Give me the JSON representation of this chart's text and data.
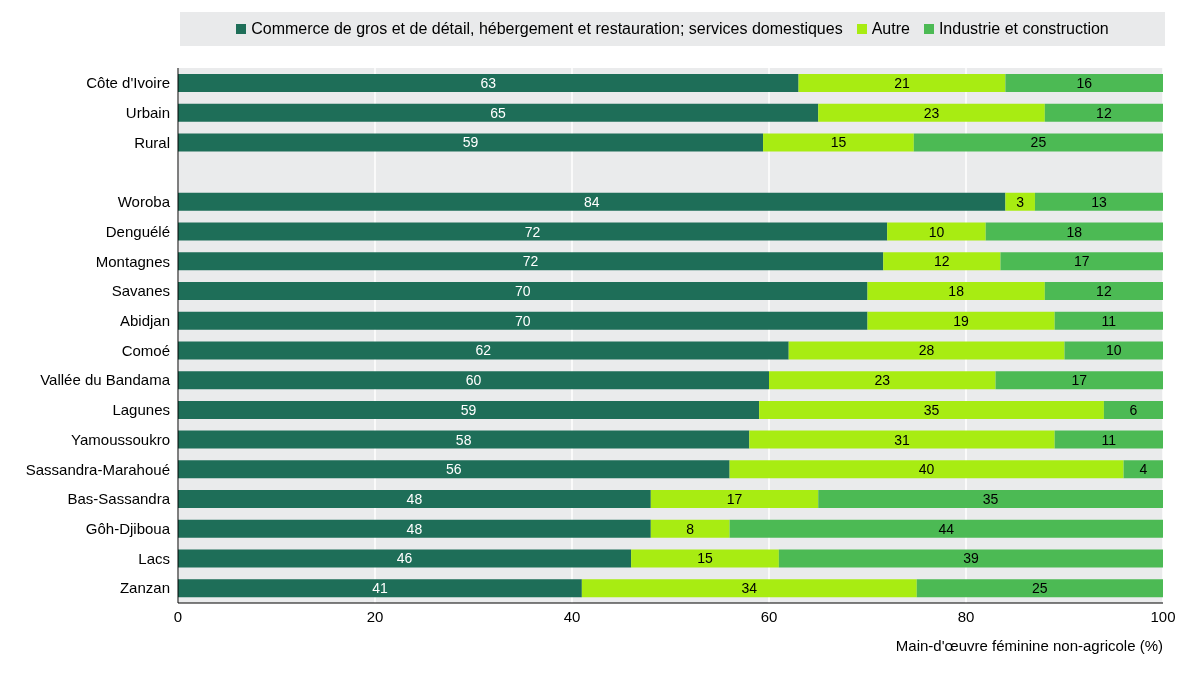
{
  "chart_data": {
    "type": "bar",
    "orientation": "horizontal",
    "stacked": true,
    "xlabel": "Main-d'œuvre féminine non-agricole (%)",
    "categories": [
      "Côte d'Ivoire",
      "Urbain",
      "Rural",
      null,
      "Woroba",
      "Denguélé",
      "Montagnes",
      "Savanes",
      "Abidjan",
      "Comoé",
      "Vallée du Bandama",
      "Lagunes",
      "Yamoussoukro",
      "Sassandra-Marahoué",
      "Bas-Sassandra",
      "Gôh-Djiboua",
      "Lacs",
      "Zanzan"
    ],
    "series": [
      {
        "name": "Commerce de gros et de détail, hébergement et restauration; services domestiques",
        "color": "#1e6e58",
        "values": [
          63,
          65,
          59.4,
          null,
          84,
          72,
          71.6,
          70,
          70,
          62,
          60,
          59,
          58,
          56,
          48,
          48,
          46,
          41
        ],
        "value_labels": [
          "63",
          "65",
          "59",
          null,
          "84",
          "72",
          "72",
          "70",
          "70",
          "62",
          "60",
          "59",
          "58",
          "56",
          "48",
          "48",
          "46",
          "41"
        ]
      },
      {
        "name": "Autre",
        "color": "#a8ec12",
        "values": [
          21,
          23,
          15.3,
          null,
          3,
          10,
          11.9,
          18,
          19,
          28,
          23,
          35,
          31,
          40,
          17,
          8,
          15,
          34
        ],
        "value_labels": [
          "21",
          "23",
          "15",
          null,
          "3",
          "10",
          "12",
          "18",
          "19",
          "28",
          "23",
          "35",
          "31",
          "40",
          "17",
          "8",
          "15",
          "34"
        ]
      },
      {
        "name": "Industrie et construction",
        "color": "#4cba54",
        "values": [
          16,
          12,
          25.3,
          null,
          13,
          18,
          16.5,
          12,
          11,
          10,
          17,
          6,
          11,
          4,
          35,
          44,
          39,
          25
        ],
        "value_labels": [
          "16",
          "12",
          "25",
          null,
          "13",
          "18",
          "17",
          "12",
          "11",
          "10",
          "17",
          "6",
          "11",
          "4",
          "35",
          "44",
          "39",
          "25"
        ]
      }
    ],
    "xlim": [
      0,
      100
    ],
    "xticks": [
      0,
      20,
      40,
      60,
      80,
      100
    ],
    "grid": "x",
    "legend": "top"
  }
}
